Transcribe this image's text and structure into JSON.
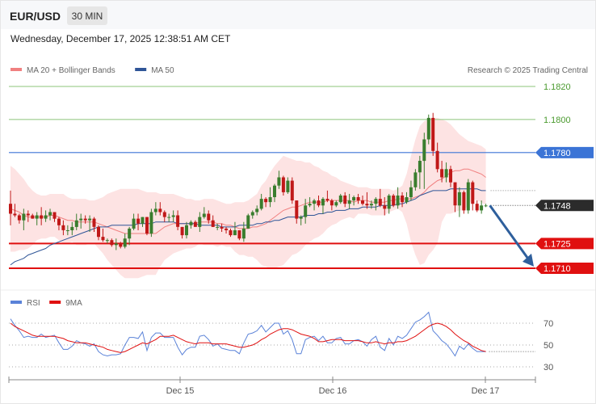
{
  "header": {
    "symbol": "EUR/USD",
    "interval": "30 MIN",
    "timestamp": "Wednesday, December 17, 2025 12:38:51 AM CET"
  },
  "main_legend": [
    {
      "name": "MA 20 + Bollinger Bands",
      "color": "#f08080"
    },
    {
      "name": "MA 50",
      "color": "#2f5597"
    }
  ],
  "copyright": "Research © 2025 Trading Central",
  "colors": {
    "up_candle": "#3a7d2e",
    "down_candle": "#c01818",
    "resistance_line": "#8cc47a",
    "pivot_line": "#3b74d6",
    "support_line": "#e01010",
    "bollinger_fill": "#fde3e3",
    "arrow": "#2e5f9c",
    "rsi_line": "#5a82d8",
    "rsi_ma": "#e01010"
  },
  "levels": [
    {
      "value": 1.182,
      "label": "1.1820",
      "kind": "resistance"
    },
    {
      "value": 1.18,
      "label": "1.1800",
      "kind": "resistance"
    },
    {
      "value": 1.178,
      "label": "1.1780",
      "kind": "pivot"
    },
    {
      "value": 1.1748,
      "label": "1.1748",
      "kind": "last"
    },
    {
      "value": 1.1725,
      "label": "1.1725",
      "kind": "support"
    },
    {
      "value": 1.171,
      "label": "1.1710",
      "kind": "support"
    }
  ],
  "rsi_legend": [
    {
      "name": "RSI",
      "color": "#5a82d8"
    },
    {
      "name": "9MA",
      "color": "#e01010"
    }
  ],
  "rsi_ticks": [
    70,
    50,
    30
  ],
  "x_ticks": [
    "Dec 15",
    "Dec 16",
    "Dec 17"
  ],
  "chart_data": {
    "type": "candlestick",
    "interval": "30 MIN",
    "y_range": [
      1.1697,
      1.1828
    ],
    "candles": [
      [
        1.1749,
        1.1757,
        1.1736,
        1.1743
      ],
      [
        1.1743,
        1.1749,
        1.1741,
        1.1742
      ],
      [
        1.1742,
        1.1743,
        1.1737,
        1.1739
      ],
      [
        1.1739,
        1.1746,
        1.1733,
        1.1743
      ],
      [
        1.1743,
        1.1745,
        1.1738,
        1.1742
      ],
      [
        1.1742,
        1.1743,
        1.174,
        1.174
      ],
      [
        1.174,
        1.1744,
        1.1736,
        1.1742
      ],
      [
        1.1742,
        1.1747,
        1.1736,
        1.174
      ],
      [
        1.174,
        1.1745,
        1.1738,
        1.1742
      ],
      [
        1.1742,
        1.1746,
        1.1739,
        1.1744
      ],
      [
        1.1744,
        1.1744,
        1.1738,
        1.174
      ],
      [
        1.174,
        1.1741,
        1.1733,
        1.1736
      ],
      [
        1.1736,
        1.1739,
        1.173,
        1.1733
      ],
      [
        1.1733,
        1.1736,
        1.173,
        1.1733
      ],
      [
        1.1733,
        1.1738,
        1.173,
        1.1735
      ],
      [
        1.1735,
        1.1743,
        1.1733,
        1.1739
      ],
      [
        1.1739,
        1.1743,
        1.1734,
        1.174
      ],
      [
        1.174,
        1.1742,
        1.1737,
        1.1739
      ],
      [
        1.1739,
        1.1742,
        1.1732,
        1.174
      ],
      [
        1.174,
        1.1741,
        1.1732,
        1.1735
      ],
      [
        1.1735,
        1.1736,
        1.1727,
        1.1729
      ],
      [
        1.1729,
        1.1734,
        1.1726,
        1.1727
      ],
      [
        1.1727,
        1.1728,
        1.1725,
        1.1727
      ],
      [
        1.1727,
        1.1728,
        1.1723,
        1.1724
      ],
      [
        1.1724,
        1.1728,
        1.1721,
        1.1725
      ],
      [
        1.1725,
        1.1726,
        1.1722,
        1.1723
      ],
      [
        1.1723,
        1.1731,
        1.1722,
        1.1728
      ],
      [
        1.1728,
        1.1735,
        1.1724,
        1.1734
      ],
      [
        1.1734,
        1.1743,
        1.1733,
        1.174
      ],
      [
        1.174,
        1.1743,
        1.1733,
        1.1737
      ],
      [
        1.1737,
        1.1741,
        1.1735,
        1.1741
      ],
      [
        1.1741,
        1.1741,
        1.173,
        1.1731
      ],
      [
        1.1731,
        1.1746,
        1.1729,
        1.1744
      ],
      [
        1.1744,
        1.175,
        1.1742,
        1.1746
      ],
      [
        1.1746,
        1.175,
        1.1742,
        1.1744
      ],
      [
        1.1744,
        1.1745,
        1.1738,
        1.1741
      ],
      [
        1.1741,
        1.1743,
        1.1738,
        1.1741
      ],
      [
        1.1741,
        1.1745,
        1.1738,
        1.1742
      ],
      [
        1.1742,
        1.1745,
        1.1733,
        1.1735
      ],
      [
        1.1735,
        1.1735,
        1.1728,
        1.173
      ],
      [
        1.173,
        1.1738,
        1.1728,
        1.1736
      ],
      [
        1.1736,
        1.1739,
        1.1734,
        1.1738
      ],
      [
        1.1738,
        1.1739,
        1.1735,
        1.1735
      ],
      [
        1.1735,
        1.1744,
        1.1732,
        1.1741
      ],
      [
        1.1741,
        1.1747,
        1.174,
        1.1743
      ],
      [
        1.1743,
        1.1745,
        1.1737,
        1.1739
      ],
      [
        1.1739,
        1.1742,
        1.1735,
        1.1735
      ],
      [
        1.1735,
        1.1737,
        1.1733,
        1.1735
      ],
      [
        1.1735,
        1.1737,
        1.1732,
        1.1734
      ],
      [
        1.1734,
        1.1735,
        1.1731,
        1.1733
      ],
      [
        1.1733,
        1.1734,
        1.1729,
        1.173
      ],
      [
        1.173,
        1.1738,
        1.173,
        1.1733
      ],
      [
        1.1733,
        1.1733,
        1.1727,
        1.1728
      ],
      [
        1.1728,
        1.1738,
        1.1726,
        1.1734
      ],
      [
        1.1734,
        1.1743,
        1.1734,
        1.1742
      ],
      [
        1.1742,
        1.1745,
        1.174,
        1.1744
      ],
      [
        1.1744,
        1.1748,
        1.1742,
        1.1746
      ],
      [
        1.1746,
        1.1755,
        1.1745,
        1.1752
      ],
      [
        1.1752,
        1.1753,
        1.1747,
        1.175
      ],
      [
        1.175,
        1.1759,
        1.1747,
        1.1753
      ],
      [
        1.1753,
        1.1761,
        1.175,
        1.176
      ],
      [
        1.176,
        1.1769,
        1.1758,
        1.1765
      ],
      [
        1.1765,
        1.1766,
        1.1754,
        1.1756
      ],
      [
        1.1756,
        1.1765,
        1.1755,
        1.1763
      ],
      [
        1.1763,
        1.1765,
        1.1749,
        1.1751
      ],
      [
        1.1751,
        1.1751,
        1.1737,
        1.174
      ],
      [
        1.174,
        1.1742,
        1.1736,
        1.1741
      ],
      [
        1.1741,
        1.1752,
        1.1737,
        1.1748
      ],
      [
        1.1748,
        1.1753,
        1.1747,
        1.1749
      ],
      [
        1.1749,
        1.1752,
        1.1745,
        1.1751
      ],
      [
        1.1751,
        1.1754,
        1.1747,
        1.1748
      ],
      [
        1.1748,
        1.1753,
        1.1743,
        1.1752
      ],
      [
        1.1752,
        1.1757,
        1.175,
        1.1751
      ],
      [
        1.1751,
        1.1752,
        1.1745,
        1.1748
      ],
      [
        1.1748,
        1.1751,
        1.1747,
        1.175
      ],
      [
        1.175,
        1.1755,
        1.1749,
        1.1754
      ],
      [
        1.1754,
        1.1756,
        1.1747,
        1.1749
      ],
      [
        1.1749,
        1.1755,
        1.1746,
        1.1751
      ],
      [
        1.1751,
        1.1754,
        1.1748,
        1.1753
      ],
      [
        1.1753,
        1.1755,
        1.1749,
        1.1751
      ],
      [
        1.1751,
        1.1754,
        1.1748,
        1.1749
      ],
      [
        1.1749,
        1.1756,
        1.1746,
        1.1748
      ],
      [
        1.1748,
        1.1751,
        1.1746,
        1.1749
      ],
      [
        1.1749,
        1.1753,
        1.1745,
        1.1752
      ],
      [
        1.1752,
        1.1758,
        1.1747,
        1.1748
      ],
      [
        1.1748,
        1.1753,
        1.1742,
        1.1746
      ],
      [
        1.1746,
        1.1755,
        1.1743,
        1.1754
      ],
      [
        1.1754,
        1.1755,
        1.1747,
        1.1748
      ],
      [
        1.1748,
        1.1759,
        1.1746,
        1.1754
      ],
      [
        1.1754,
        1.1756,
        1.1747,
        1.175
      ],
      [
        1.175,
        1.1756,
        1.1749,
        1.1753
      ],
      [
        1.1753,
        1.1763,
        1.1751,
        1.1759
      ],
      [
        1.1759,
        1.177,
        1.1757,
        1.1768
      ],
      [
        1.1768,
        1.1778,
        1.1758,
        1.1775
      ],
      [
        1.1775,
        1.1792,
        1.1758,
        1.1788
      ],
      [
        1.1788,
        1.1803,
        1.1785,
        1.1801
      ],
      [
        1.1801,
        1.1804,
        1.1778,
        1.1781
      ],
      [
        1.1781,
        1.1786,
        1.1768,
        1.177
      ],
      [
        1.177,
        1.1775,
        1.1762,
        1.1765
      ],
      [
        1.1765,
        1.1774,
        1.1762,
        1.177
      ],
      [
        1.177,
        1.1772,
        1.1759,
        1.1762
      ],
      [
        1.1762,
        1.1762,
        1.1744,
        1.1748
      ],
      [
        1.1748,
        1.1759,
        1.1741,
        1.1756
      ],
      [
        1.1756,
        1.1757,
        1.1743,
        1.1745
      ],
      [
        1.1745,
        1.1764,
        1.1743,
        1.1762
      ],
      [
        1.1762,
        1.1763,
        1.1745,
        1.1749
      ],
      [
        1.1749,
        1.1751,
        1.1744,
        1.1745
      ],
      [
        1.1745,
        1.1751,
        1.1743,
        1.1748
      ],
      [
        1.1748,
        1.1749,
        1.1747,
        1.1748
      ]
    ],
    "ma20": [
      1.1746,
      1.1745,
      1.1744,
      1.1742,
      1.1741,
      1.1741,
      1.1741,
      1.1741,
      1.1741,
      1.1742,
      1.1742,
      1.1741,
      1.174,
      1.1739,
      1.1739,
      1.1738,
      1.1738,
      1.1738,
      1.1738,
      1.1738,
      1.1737,
      1.1736,
      1.1735,
      1.1734,
      1.1733,
      1.1732,
      1.1731,
      1.1731,
      1.1731,
      1.1731,
      1.1731,
      1.1731,
      1.1731,
      1.1731,
      1.1733,
      1.1735,
      1.1736,
      1.1737,
      1.1737,
      1.1737,
      1.1737,
      1.1737,
      1.1737,
      1.1738,
      1.1738,
      1.1738,
      1.1738,
      1.1737,
      1.1737,
      1.1736,
      1.1736,
      1.1735,
      1.1734,
      1.1734,
      1.1734,
      1.1735,
      1.1735,
      1.1736,
      1.1737,
      1.1739,
      1.1741,
      1.1743,
      1.1745,
      1.1746,
      1.1747,
      1.1747,
      1.1748,
      1.1749,
      1.175,
      1.175,
      1.175,
      1.175,
      1.1751,
      1.1751,
      1.1751,
      1.1751,
      1.1751,
      1.1751,
      1.175,
      1.1751,
      1.1751,
      1.1751,
      1.175,
      1.175,
      1.175,
      1.175,
      1.1751,
      1.1751,
      1.1752,
      1.1752,
      1.1752,
      1.1752,
      1.1753,
      1.1754,
      1.1756,
      1.1759,
      1.1761,
      1.1763,
      1.1764,
      1.1766,
      1.1768,
      1.1769,
      1.1769,
      1.177,
      1.177,
      1.1769,
      1.1768,
      1.1767,
      1.1765
    ],
    "bb_upper": [
      1.1772,
      1.177,
      1.1767,
      1.1764,
      1.176,
      1.1757,
      1.1755,
      1.1754,
      1.1754,
      1.1755,
      1.1755,
      1.1755,
      1.1755,
      1.1753,
      1.1752,
      1.1752,
      1.1752,
      1.1752,
      1.1751,
      1.1751,
      1.1752,
      1.1753,
      1.1755,
      1.1756,
      1.1757,
      1.1758,
      1.1758,
      1.1758,
      1.1758,
      1.1758,
      1.1757,
      1.1756,
      1.1756,
      1.1756,
      1.1755,
      1.1755,
      1.1755,
      1.1755,
      1.1754,
      1.1753,
      1.1752,
      1.1752,
      1.1751,
      1.1751,
      1.1752,
      1.1752,
      1.1752,
      1.1751,
      1.175,
      1.1749,
      1.1749,
      1.175,
      1.175,
      1.175,
      1.1751,
      1.1753,
      1.1755,
      1.176,
      1.1763,
      1.1768,
      1.1772,
      1.1775,
      1.1778,
      1.1777,
      1.1776,
      1.1775,
      1.1775,
      1.1774,
      1.1774,
      1.1772,
      1.1771,
      1.1769,
      1.1768,
      1.1766,
      1.1765,
      1.1763,
      1.1762,
      1.1761,
      1.176,
      1.1759,
      1.1759,
      1.1759,
      1.1758,
      1.1758,
      1.1758,
      1.1758,
      1.1758,
      1.1757,
      1.1758,
      1.176,
      1.1767,
      1.1778,
      1.1788,
      1.1796,
      1.1799,
      1.18,
      1.1801,
      1.1801,
      1.18,
      1.1799,
      1.1797,
      1.1794,
      1.1791,
      1.1789,
      1.1787,
      1.1786,
      1.1785,
      1.1784,
      1.1782
    ],
    "bb_lower": [
      1.172,
      1.172,
      1.1721,
      1.1721,
      1.1722,
      1.1724,
      1.1727,
      1.1728,
      1.1728,
      1.1729,
      1.1729,
      1.1727,
      1.1725,
      1.1725,
      1.1726,
      1.1724,
      1.1724,
      1.1724,
      1.1725,
      1.1725,
      1.1722,
      1.1719,
      1.1715,
      1.1712,
      1.1709,
      1.1706,
      1.1704,
      1.1704,
      1.1704,
      1.1704,
      1.1705,
      1.1706,
      1.1706,
      1.1706,
      1.1711,
      1.1715,
      1.1717,
      1.1719,
      1.172,
      1.1721,
      1.1722,
      1.1722,
      1.1723,
      1.1725,
      1.1724,
      1.1724,
      1.1724,
      1.1723,
      1.1724,
      1.1723,
      1.1723,
      1.172,
      1.1718,
      1.1718,
      1.1717,
      1.1717,
      1.1715,
      1.1712,
      1.1711,
      1.171,
      1.171,
      1.1711,
      1.1712,
      1.1715,
      1.1718,
      1.1719,
      1.1721,
      1.1724,
      1.1726,
      1.1728,
      1.1729,
      1.1731,
      1.1734,
      1.1736,
      1.1737,
      1.1739,
      1.174,
      1.1741,
      1.174,
      1.1743,
      1.1743,
      1.1743,
      1.1742,
      1.1742,
      1.1742,
      1.1742,
      1.1744,
      1.1745,
      1.1746,
      1.1744,
      1.1737,
      1.1726,
      1.1718,
      1.1712,
      1.1713,
      1.1718,
      1.1721,
      1.1725,
      1.1738,
      1.1743,
      1.1743,
      1.1744,
      1.1745,
      1.1745,
      1.1748,
      1.1752,
      1.1751,
      1.175,
      1.1748
    ],
    "ma50": [
      1.1712,
      1.1714,
      1.1715,
      1.1716,
      1.1718,
      1.1719,
      1.172,
      1.1721,
      1.1722,
      1.1724,
      1.1725,
      1.1726,
      1.1727,
      1.1728,
      1.1729,
      1.173,
      1.1731,
      1.1732,
      1.1733,
      1.1734,
      1.1735,
      1.1735,
      1.1735,
      1.1736,
      1.1736,
      1.1736,
      1.1736,
      1.1736,
      1.1736,
      1.1737,
      1.1737,
      1.1737,
      1.1737,
      1.1738,
      1.1738,
      1.1738,
      1.1738,
      1.1738,
      1.1737,
      1.1737,
      1.1737,
      1.1737,
      1.1737,
      1.1736,
      1.1736,
      1.1736,
      1.1736,
      1.1736,
      1.1735,
      1.1735,
      1.1735,
      1.1735,
      1.1736,
      1.1736,
      1.1736,
      1.1736,
      1.1737,
      1.1737,
      1.1738,
      1.1738,
      1.1739,
      1.1739,
      1.174,
      1.1741,
      1.1741,
      1.1741,
      1.1741,
      1.1742,
      1.1742,
      1.1742,
      1.1743,
      1.1743,
      1.1744,
      1.1744,
      1.1745,
      1.1745,
      1.1745,
      1.1746,
      1.1746,
      1.1746,
      1.1747,
      1.1747,
      1.1747,
      1.1747,
      1.1748,
      1.1748,
      1.1748,
      1.1748,
      1.1749,
      1.1749,
      1.175,
      1.1751,
      1.1752,
      1.1754,
      1.1755,
      1.1756,
      1.1757,
      1.1757,
      1.1757,
      1.1757,
      1.1758,
      1.1758,
      1.1758,
      1.1758,
      1.1758,
      1.1758,
      1.1758,
      1.1757,
      1.1757
    ],
    "rsi": [
      74,
      68,
      63,
      57,
      58,
      57,
      57,
      60,
      57,
      58,
      59,
      52,
      46,
      46,
      49,
      54,
      52,
      51,
      49,
      51,
      44,
      41,
      40,
      41,
      41,
      42,
      50,
      57,
      57,
      56,
      62,
      45,
      57,
      61,
      61,
      57,
      57,
      57,
      48,
      41,
      46,
      48,
      48,
      58,
      59,
      55,
      49,
      51,
      47,
      46,
      45,
      45,
      42,
      52,
      60,
      61,
      63,
      68,
      62,
      66,
      70,
      70,
      60,
      63,
      55,
      42,
      42,
      55,
      57,
      58,
      54,
      58,
      52,
      52,
      56,
      57,
      51,
      51,
      54,
      55,
      53,
      49,
      55,
      58,
      48,
      45,
      56,
      50,
      58,
      56,
      59,
      65,
      71,
      73,
      76,
      80,
      63,
      59,
      54,
      51,
      46,
      40,
      49,
      46,
      51,
      47,
      44,
      44,
      44
    ],
    "rsi_ma": [
      70,
      67,
      65,
      63,
      61,
      59,
      58,
      58,
      58,
      58,
      58,
      57,
      56,
      54,
      53,
      52,
      52,
      52,
      51,
      50,
      49,
      48,
      46,
      45,
      44,
      43,
      44,
      46,
      48,
      50,
      52,
      51,
      53,
      55,
      58,
      58,
      58,
      59,
      57,
      55,
      53,
      52,
      51,
      52,
      52,
      52,
      51,
      51,
      51,
      51,
      50,
      49,
      48,
      48,
      49,
      50,
      52,
      55,
      57,
      60,
      62,
      64,
      65,
      65,
      64,
      62,
      60,
      59,
      58,
      56,
      53,
      53,
      54,
      55,
      55,
      55,
      54,
      54,
      54,
      54,
      53,
      52,
      52,
      53,
      52,
      51,
      52,
      52,
      53,
      53,
      54,
      56,
      58,
      61,
      64,
      67,
      69,
      70,
      69,
      67,
      64,
      60,
      57,
      54,
      52,
      49,
      47,
      45,
      44
    ]
  }
}
